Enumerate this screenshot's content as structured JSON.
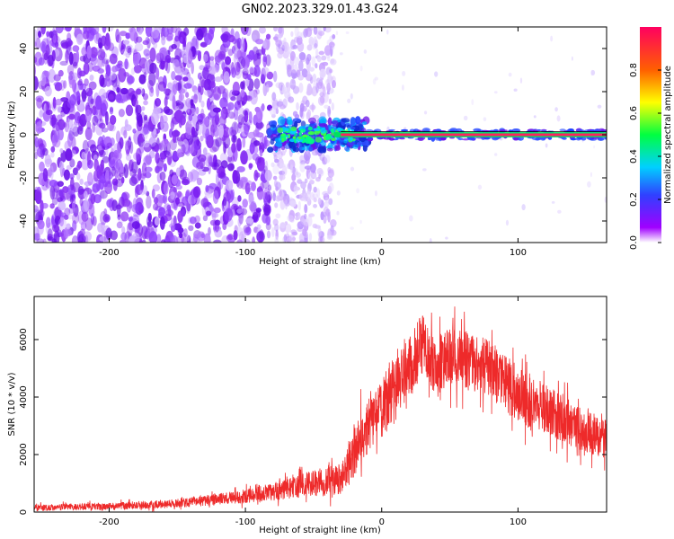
{
  "figure": {
    "title": "GN02.2023.329.01.43.G24"
  },
  "chart_data": [
    {
      "type": "heatmap",
      "xlabel": "Height of straight line (km)",
      "ylabel": "Frequency (Hz)",
      "xlim": [
        -255,
        165
      ],
      "ylim": [
        -50,
        50
      ],
      "x_ticks": [
        -200,
        -100,
        0,
        100
      ],
      "y_ticks": [
        -40,
        -20,
        0,
        20,
        40
      ],
      "colorbar": {
        "label": "Normalized spectral amplitude",
        "range": [
          0,
          1
        ],
        "ticks": [
          0.0,
          0.2,
          0.4,
          0.6,
          0.8
        ],
        "colormap": [
          "#ffffff",
          "#a000ff",
          "#3040ff",
          "#00d0ff",
          "#00ff40",
          "#ffff00",
          "#ff6000",
          "#ff0060"
        ]
      },
      "regions": [
        {
          "x_range": [
            -255,
            -80
          ],
          "freq_range": [
            -50,
            50
          ],
          "amplitude": 0.12,
          "description_color": "#7a1cf0"
        },
        {
          "x_range": [
            -80,
            -35
          ],
          "freq_range": [
            -50,
            50
          ],
          "amplitude": 0.05,
          "description_color": "#c8a0ff"
        },
        {
          "x_range": [
            -80,
            -10
          ],
          "freq_range": [
            -8,
            8
          ],
          "amplitude": 0.3,
          "description_color": "#2040ff"
        },
        {
          "x_range": [
            -10,
            165
          ],
          "freq_range": [
            -2,
            2
          ],
          "amplitude": 0.9,
          "description_color": "#ff2060"
        }
      ],
      "grid": false,
      "series_color": "#7a1cf0"
    },
    {
      "type": "line",
      "xlabel": "Height of straight line (km)",
      "ylabel": "SNR (10 * v/v)",
      "xlim": [
        -255,
        165
      ],
      "ylim": [
        0,
        7500
      ],
      "x_ticks": [
        -200,
        -100,
        0,
        100
      ],
      "y_ticks": [
        0,
        2000,
        4000,
        6000
      ],
      "color": "#ee2a2a",
      "envelope": {
        "x": [
          -255,
          -200,
          -150,
          -120,
          -100,
          -80,
          -60,
          -50,
          -40,
          -30,
          -20,
          -15,
          -10,
          0,
          10,
          20,
          30,
          40,
          50,
          60,
          80,
          100,
          120,
          140,
          160,
          165
        ],
        "mean": [
          150,
          200,
          300,
          450,
          550,
          700,
          900,
          1000,
          1100,
          1100,
          2000,
          2700,
          3000,
          3500,
          4500,
          5000,
          5800,
          5000,
          5400,
          5300,
          5000,
          4000,
          3600,
          3000,
          2600,
          2500
        ],
        "spread": [
          150,
          150,
          200,
          250,
          300,
          400,
          500,
          600,
          700,
          700,
          1100,
          1200,
          1200,
          1400,
          1400,
          1400,
          1400,
          1300,
          1300,
          1300,
          1200,
          1200,
          1100,
          1000,
          900,
          900
        ]
      },
      "grid": false
    }
  ]
}
